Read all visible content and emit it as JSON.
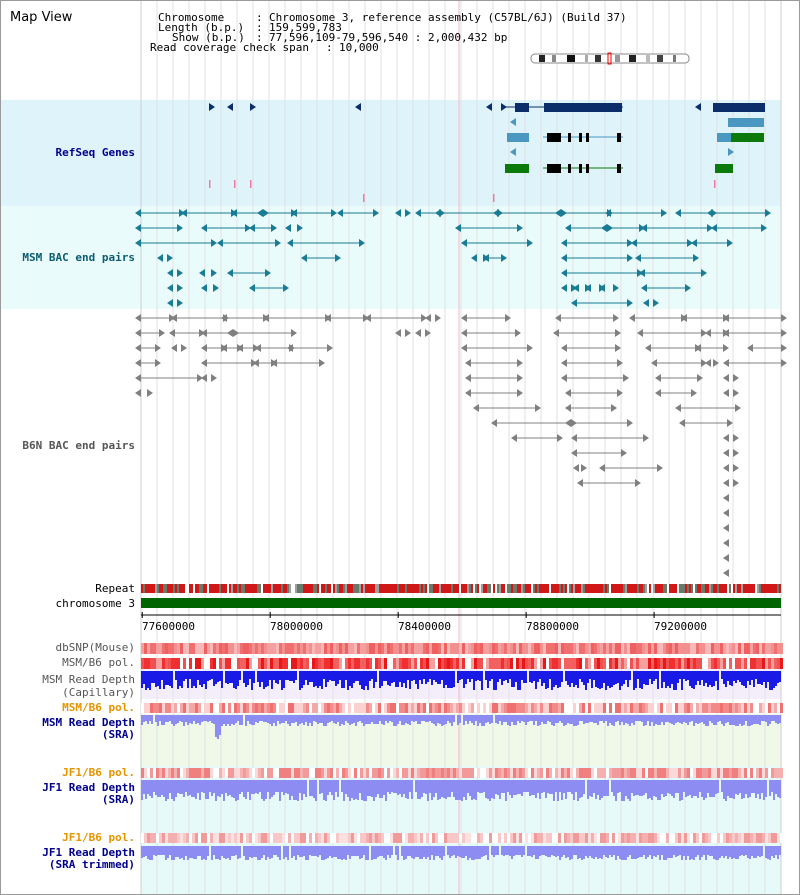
{
  "view": {
    "title": "Map View"
  },
  "info": {
    "chromosome_key": "Chromosome",
    "chromosome_val": "Chromosome 3, reference assembly (C57BL/6J) (Build 37)",
    "length_key": "Length (b.p.)",
    "length_val": "159,599,783",
    "show_key": "Show (b.p.)",
    "show_val": "77,596,109-79,596,540 : 2,000,432 bp",
    "coverage_key": "Read coverage check span",
    "coverage_val": "10,000"
  },
  "tracks": {
    "refseq": "RefSeq Genes",
    "msm_bac": "MSM BAC end pairs",
    "b6n_bac": "B6N BAC end pairs",
    "repeat": "Repeat",
    "chromosome": "chromosome 3",
    "dbsnp": "dbSNP(Mouse)",
    "msm_b6_pol": "MSM/B6 pol.",
    "msm_depth_cap_1": "MSM Read Depth",
    "msm_depth_cap_2": "(Capillary)",
    "msm_b6_pol_sra": "MSM/B6 pol.",
    "msm_depth_sra_1": "MSM Read Depth",
    "msm_depth_sra_2": "(SRA)",
    "jf1_b6_pol": "JF1/B6 pol.",
    "jf1_depth_sra_1": "JF1 Read Depth",
    "jf1_depth_sra_2": "(SRA)",
    "jf1_b6_pol_trim": "JF1/B6 pol.",
    "jf1_depth_trim_1": "JF1 Read Depth",
    "jf1_depth_trim_2": "(SRA trimmed)"
  },
  "axis": {
    "ticks": [
      "77600000",
      "78000000",
      "78400000",
      "78800000",
      "79200000"
    ],
    "tick_positions_bp": [
      77600000,
      78000000,
      78400000,
      78800000,
      79200000
    ],
    "range_bp": [
      77596109,
      79596540
    ]
  },
  "colors": {
    "refseq_bg": "#dff3fb",
    "msm_bac_bg": "#eafbfb",
    "gene_navy": "#0b2e6b",
    "gene_blue": "#4a97c2",
    "gene_green": "#0b7a0b",
    "bac_teal": "#1a7b95",
    "bac_gray": "#808080",
    "chromosome_bar": "#006400",
    "depth_blue": "#1a1ae6",
    "depth_light": "#8c8cf2",
    "pol_red": "#f04545"
  }
}
